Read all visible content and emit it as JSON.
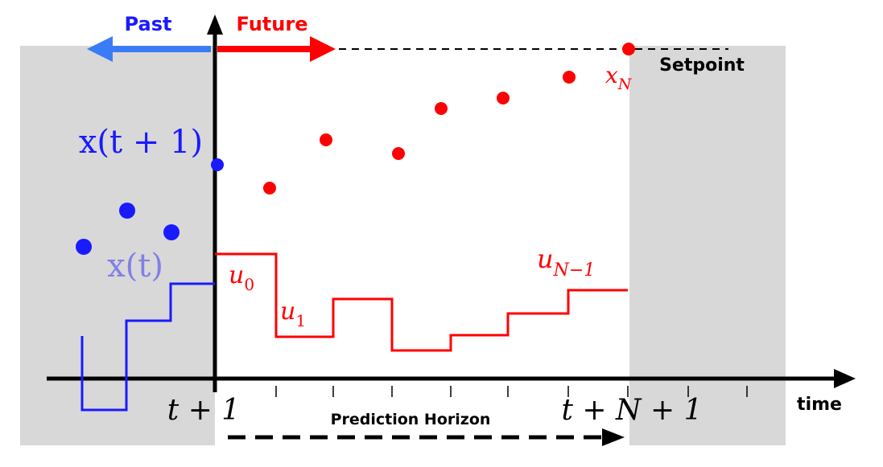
{
  "labels": {
    "past": "Past",
    "future": "Future",
    "setpoint": "Setpoint",
    "time_axis": "time",
    "prediction_horizon": "Prediction Horizon"
  },
  "math": {
    "x_t1": "x(t + 1)",
    "x_t": "x(t)",
    "x_N": {
      "base": "x",
      "sub": "N"
    },
    "u_0": {
      "base": "u",
      "sub": "0"
    },
    "u_1": {
      "base": "u",
      "sub": "1"
    },
    "u_N_1": {
      "base": "u",
      "sub": "N−1"
    },
    "tick_t1": "t + 1",
    "tick_tN1": "t + N + 1"
  },
  "colors": {
    "past": "#1a1aff",
    "future": "#ff0000",
    "past_arrow": "#3a7cf5",
    "shade": "#d8d8d8",
    "axis": "#000000",
    "x_t_label": "#8080e8"
  }
}
